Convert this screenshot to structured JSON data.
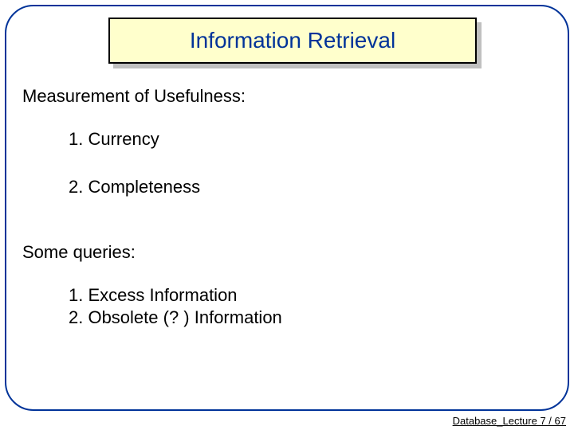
{
  "slide": {
    "title": "Information Retrieval",
    "title_color": "#003399",
    "title_bg": "#ffffcc",
    "title_border": "#000000",
    "title_fontsize": 28,
    "frame_border_color": "#003399",
    "frame_border_radius": 36,
    "background": "#ffffff",
    "shadow_color": "#c0c0c0",
    "body_fontsize": 22,
    "body_color": "#000000",
    "section1": {
      "heading": "Measurement of Usefulness:",
      "items": [
        "1. Currency",
        "2. Completeness"
      ]
    },
    "section2": {
      "heading": "Some queries:",
      "items": [
        "1. Excess Information",
        "2. Obsolete (? ) Information"
      ]
    },
    "footer": "Database_Lecture 7 /  67"
  }
}
